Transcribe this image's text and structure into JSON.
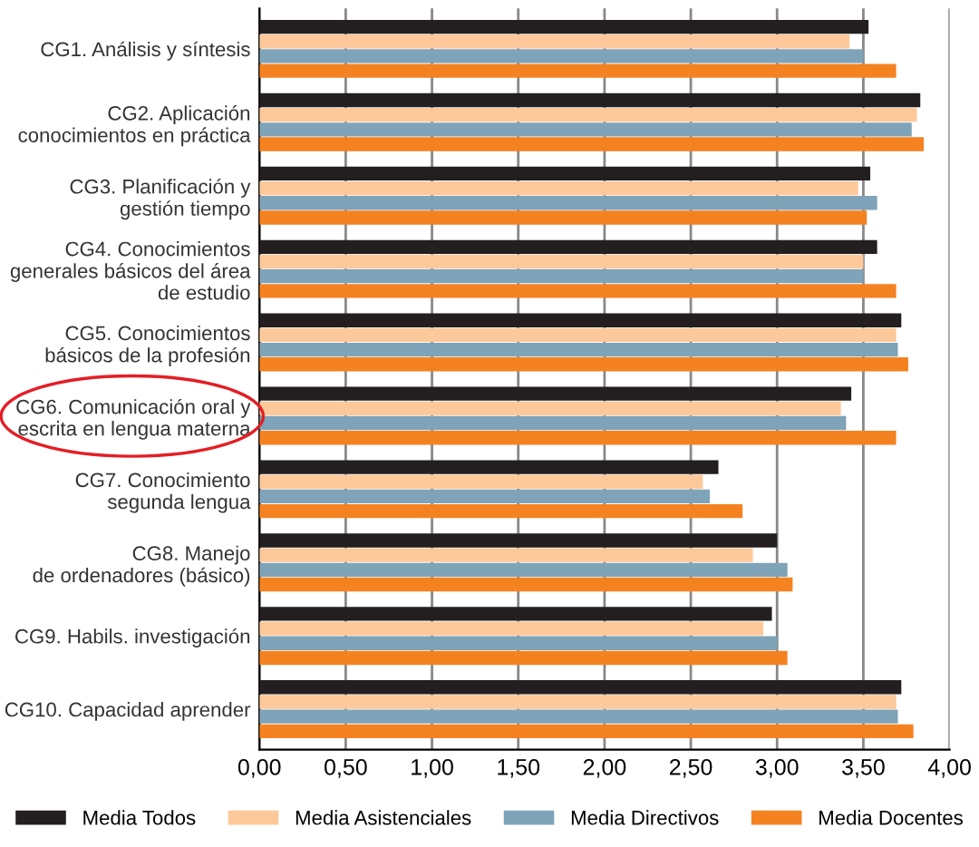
{
  "chart_data": {
    "type": "bar",
    "orientation": "horizontal",
    "categories": [
      "CG1. Análisis y síntesis",
      "CG2. Aplicación\nconocimientos en práctica",
      "CG3. Planificación y\ngestión tiempo",
      "CG4. Conocimientos\ngenerales básicos del área\nde estudio",
      "CG5. Conocimientos\nbásicos de la profesión",
      "CG6. Comunicación oral y\nescrita en lengua materna",
      "CG7. Conocimiento\nsegunda lengua",
      "CG8. Manejo\nde ordenadores (básico)",
      "CG9. Habils. investigación",
      "CG10. Capacidad aprender"
    ],
    "series": [
      {
        "name": "Media Todos",
        "color": "#231f20",
        "values": [
          3.53,
          3.83,
          3.54,
          3.58,
          3.72,
          3.43,
          2.66,
          3.0,
          2.97,
          3.72
        ]
      },
      {
        "name": "Media Asistenciales",
        "color": "#fdc89a",
        "values": [
          3.42,
          3.81,
          3.47,
          3.5,
          3.69,
          3.37,
          2.57,
          2.86,
          2.92,
          3.69
        ]
      },
      {
        "name": "Media Directivos",
        "color": "#7fa3b8",
        "values": [
          3.5,
          3.78,
          3.58,
          3.5,
          3.7,
          3.4,
          2.61,
          3.06,
          3.0,
          3.7
        ]
      },
      {
        "name": "Media Docentes",
        "color": "#f58220",
        "values": [
          3.69,
          3.85,
          3.52,
          3.69,
          3.76,
          3.69,
          2.8,
          3.09,
          3.06,
          3.79
        ]
      }
    ],
    "xlim": [
      0,
      4
    ],
    "xticks": [
      {
        "value": 0,
        "label": "0,00"
      },
      {
        "value": 0.5,
        "label": "0,50"
      },
      {
        "value": 1,
        "label": "1,00"
      },
      {
        "value": 1.5,
        "label": "1,50"
      },
      {
        "value": 2,
        "label": "2,00"
      },
      {
        "value": 2.5,
        "label": "2,50"
      },
      {
        "value": 3,
        "label": "3,00"
      },
      {
        "value": 3.5,
        "label": "3,50"
      },
      {
        "value": 4,
        "label": "4,00"
      }
    ],
    "grid": "x",
    "legend": "bottom"
  }
}
